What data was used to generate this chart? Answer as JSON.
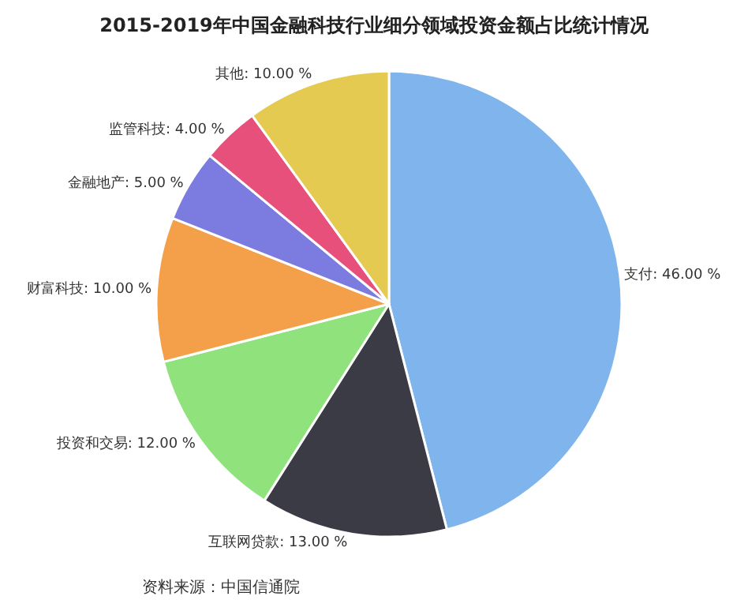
{
  "chart_data": {
    "type": "pie",
    "title": "2015-2019年中国金融科技行业细分领域投资金额占比统计情况",
    "categories": [
      "支付",
      "互联网贷款",
      "投资和交易",
      "财富科技",
      "金融地产",
      "监管科技",
      "其他"
    ],
    "values": [
      46,
      13,
      12,
      10,
      5,
      4,
      10
    ],
    "value_labels": [
      "46.00 %",
      "13.00 %",
      "12.00 %",
      "10.00 %",
      "5.00 %",
      "4.00 %",
      "10.00 %"
    ],
    "colors": [
      "#80b4ec",
      "#3a3b45",
      "#90e27c",
      "#f4a04a",
      "#7b7be0",
      "#e8507c",
      "#e4ca50"
    ],
    "annotations": [
      "资料来源：中国信通院"
    ],
    "legend": false
  }
}
